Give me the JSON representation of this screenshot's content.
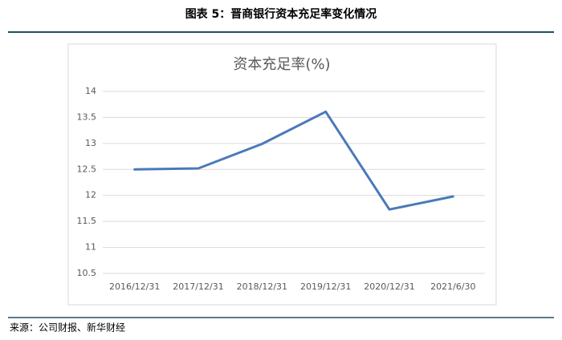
{
  "chart_data": {
    "type": "line",
    "caption": "图表 5：晋商银行资本充足率变化情况",
    "title": "资本充足率(%)",
    "source": "来源：公司财报、新华财经",
    "categories": [
      "2016/12/31",
      "2017/12/31",
      "2018/12/31",
      "2019/12/31",
      "2020/12/31",
      "2021/6/30"
    ],
    "values": [
      12.5,
      12.52,
      12.99,
      13.61,
      11.73,
      11.98
    ],
    "color": "#4a7ab8",
    "ylim": [
      10.5,
      14
    ],
    "yticks": [
      10.5,
      11,
      11.5,
      12,
      12.5,
      13,
      13.5,
      14
    ],
    "grid": true
  }
}
